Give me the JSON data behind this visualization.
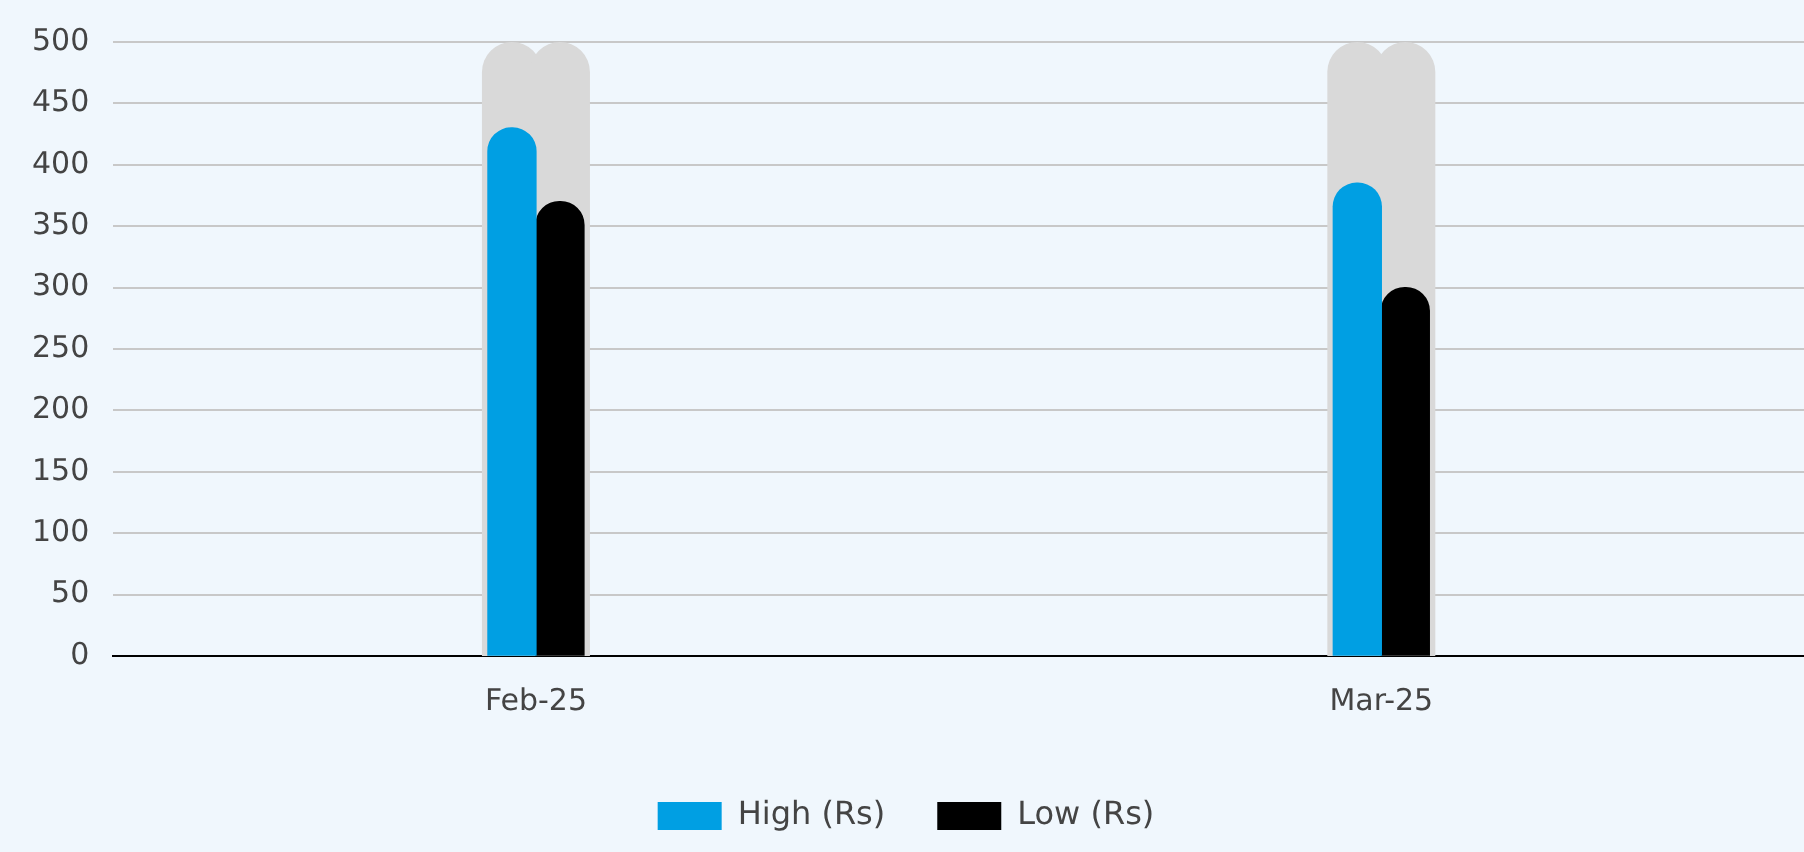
{
  "chart_data": {
    "type": "bar",
    "categories": [
      "Feb-25",
      "Mar-25"
    ],
    "series": [
      {
        "name": "High (Rs)",
        "color": "#009fe3",
        "values": [
          430,
          385
        ]
      },
      {
        "name": "Low (Rs)",
        "color": "#000000",
        "values": [
          370,
          300
        ]
      }
    ],
    "ylim": [
      0,
      500
    ],
    "yticks": [
      0,
      50,
      100,
      150,
      200,
      250,
      300,
      350,
      400,
      450,
      500
    ],
    "grid": "y",
    "legend": "bottom"
  }
}
